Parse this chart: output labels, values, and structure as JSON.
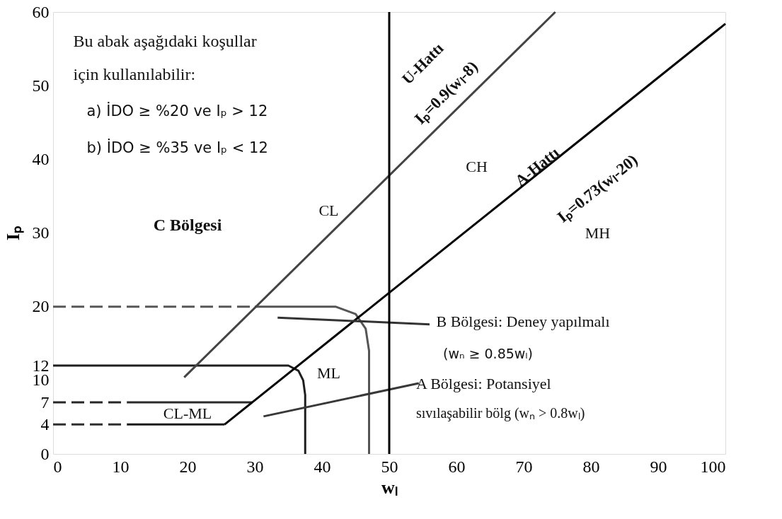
{
  "chart_data": {
    "type": "line",
    "xlabel": "wₗ",
    "ylabel": "Iₚ",
    "xlim": [
      0,
      100
    ],
    "ylim": [
      0,
      60
    ],
    "xticks": [
      0,
      10,
      20,
      30,
      40,
      50,
      60,
      70,
      80,
      90,
      100
    ],
    "yticks": [
      0,
      4,
      7,
      10,
      12,
      20,
      30,
      40,
      50,
      60
    ],
    "grid": false,
    "line_style": "solid",
    "ref_lines": [
      {
        "axis": "x",
        "value": 50,
        "color": "#000000"
      }
    ],
    "series": [
      {
        "color": "#575757",
        "line_style": "dashed",
        "x": [
          0,
          30
        ],
        "values": [
          20,
          20
        ]
      },
      {
        "color": "#555555",
        "x": [
          30,
          42,
          45,
          46.5,
          47,
          47
        ],
        "values": [
          20,
          20,
          19,
          17,
          14,
          0
        ]
      },
      {
        "color": "#1e1e1e",
        "x": [
          0,
          35,
          36.5,
          37.2,
          37.5,
          37.5
        ],
        "values": [
          12,
          12,
          11.3,
          10,
          8,
          0
        ]
      },
      {
        "color": "#262626",
        "line_style": "dashed",
        "x": [
          0,
          11
        ],
        "values": [
          7,
          7
        ]
      },
      {
        "color": "#2a2a2a",
        "x": [
          11,
          29.6
        ],
        "values": [
          7,
          7
        ]
      },
      {
        "color": "#2e2e2e",
        "line_style": "dashed",
        "x": [
          0,
          11
        ],
        "values": [
          4,
          4
        ]
      },
      {
        "color": "#1a1a1a",
        "x": [
          11,
          25.5
        ],
        "values": [
          4,
          4
        ]
      },
      {
        "color": "#444444",
        "x": [
          19.5,
          74.7
        ],
        "values": [
          10.4,
          60
        ]
      },
      {
        "color": "#000000",
        "x": [
          25.5,
          100
        ],
        "values": [
          4.0,
          58.4
        ]
      },
      {
        "color": "#333333",
        "x": [
          56,
          33.4
        ],
        "values": [
          17.6,
          18.5
        ]
      },
      {
        "color": "#383838",
        "x": [
          54.4,
          31.3
        ],
        "values": [
          9.6,
          5.1
        ]
      }
    ],
    "annotations": [
      "Bu abak aşağıdaki koşullar",
      "için kullanılabilir:",
      "a) İDO ≥ %20 ve Iₚ > 12",
      "b) İDO ≥ %35 ve Iₚ < 12",
      "C Bölgesi",
      "CL",
      "CH",
      "MH",
      "ML",
      "CL-ML",
      "U-Hattı",
      "Iₚ=0.9(wₗ-8)",
      "A-Hattı",
      "Iₚ=0.73(wₗ-20)",
      "B Bölgesi: Deney yapılmalı",
      "(wₙ ≥ 0.85wₗ)",
      "A Bölgesi: Potansiyel",
      "sıvılaşabilir bölg (wₙ > 0.8wₗ)"
    ]
  }
}
